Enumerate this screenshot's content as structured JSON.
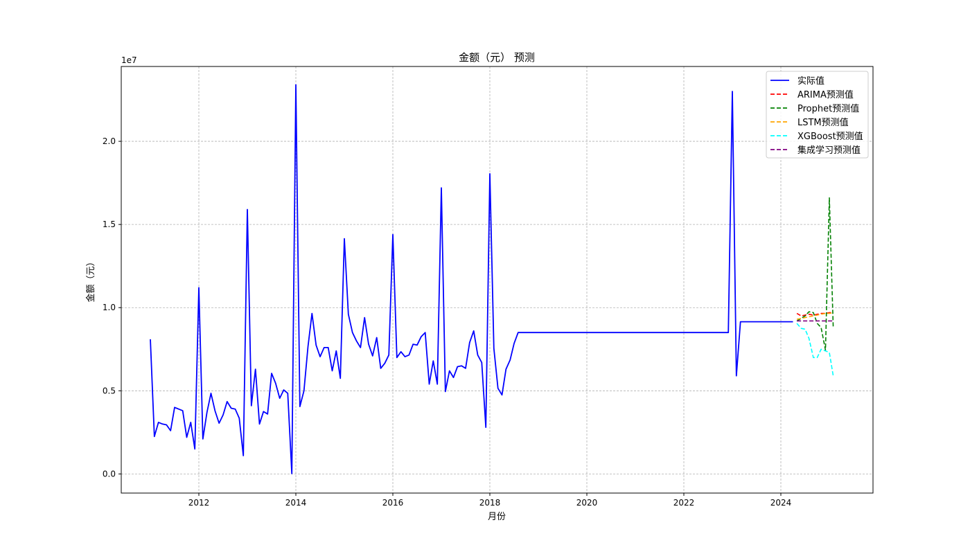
{
  "chart_data": {
    "type": "line",
    "title": "金额（元） 预测",
    "xlabel": "月份",
    "ylabel": "金额（元）",
    "y_offset_label": "1e7",
    "y_scale": 10000000,
    "xlim": [
      2010.4,
      2025.9
    ],
    "ylim": [
      -1150000,
      24500000
    ],
    "x_ticks": [
      2012,
      2014,
      2016,
      2018,
      2020,
      2022,
      2024
    ],
    "x_tick_labels": [
      "2012",
      "2014",
      "2016",
      "2018",
      "2020",
      "2022",
      "2024"
    ],
    "y_ticks": [
      0,
      5000000,
      10000000,
      15000000,
      20000000
    ],
    "y_tick_labels": [
      "0.0",
      "0.5",
      "1.0",
      "1.5",
      "2.0"
    ],
    "grid": true,
    "legend_position": "top-right",
    "series": [
      {
        "name": "实际值",
        "color": "#0000ff",
        "dash": "solid",
        "x": [
          2011.0,
          2011.083,
          2011.167,
          2011.25,
          2011.333,
          2011.417,
          2011.5,
          2011.583,
          2011.667,
          2011.75,
          2011.833,
          2011.917,
          2012.0,
          2012.083,
          2012.167,
          2012.25,
          2012.333,
          2012.417,
          2012.5,
          2012.583,
          2012.667,
          2012.75,
          2012.833,
          2012.917,
          2013.0,
          2013.083,
          2013.167,
          2013.25,
          2013.333,
          2013.417,
          2013.5,
          2013.583,
          2013.667,
          2013.75,
          2013.833,
          2013.917,
          2014.0,
          2014.083,
          2014.167,
          2014.25,
          2014.333,
          2014.417,
          2014.5,
          2014.583,
          2014.667,
          2014.75,
          2014.833,
          2014.917,
          2015.0,
          2015.083,
          2015.167,
          2015.25,
          2015.333,
          2015.417,
          2015.5,
          2015.583,
          2015.667,
          2015.75,
          2015.833,
          2015.917,
          2016.0,
          2016.083,
          2016.167,
          2016.25,
          2016.333,
          2016.417,
          2016.5,
          2016.583,
          2016.667,
          2016.75,
          2016.833,
          2016.917,
          2017.0,
          2017.083,
          2017.167,
          2017.25,
          2017.333,
          2017.417,
          2017.5,
          2017.583,
          2017.667,
          2017.75,
          2017.833,
          2017.917,
          2018.0,
          2018.083,
          2018.167,
          2018.25,
          2018.333,
          2018.417,
          2018.5,
          2018.583,
          2022.917,
          2023.0,
          2023.083,
          2023.167,
          2024.25
        ],
        "values": [
          8100000,
          2250000,
          3100000,
          3000000,
          2950000,
          2600000,
          4000000,
          3900000,
          3800000,
          2200000,
          3100000,
          1500000,
          11200000,
          2100000,
          3700000,
          4850000,
          3800000,
          3050000,
          3550000,
          4350000,
          3950000,
          3900000,
          3350000,
          1100000,
          15900000,
          4100000,
          6300000,
          3000000,
          3750000,
          3600000,
          6050000,
          5450000,
          4550000,
          5050000,
          4850000,
          20000,
          23400000,
          4050000,
          5000000,
          7650000,
          9650000,
          7750000,
          7050000,
          7600000,
          7600000,
          6200000,
          7400000,
          5750000,
          14150000,
          9600000,
          8500000,
          8000000,
          7600000,
          9400000,
          7800000,
          7100000,
          8200000,
          6350000,
          6650000,
          7150000,
          14400000,
          7000000,
          7350000,
          7050000,
          7150000,
          7800000,
          7750000,
          8250000,
          8500000,
          5400000,
          6800000,
          5400000,
          17200000,
          4950000,
          6200000,
          5800000,
          6450000,
          6500000,
          6350000,
          7900000,
          8600000,
          7150000,
          6700000,
          2800000,
          18050000,
          7550000,
          5150000,
          4750000,
          6300000,
          6850000,
          7850000,
          8500000,
          8500000,
          23000000,
          5900000,
          9150000,
          9150000
        ]
      },
      {
        "name": "ARIMA预测值",
        "color": "#ff0000",
        "dash": "dashed",
        "x": [
          2024.33,
          2024.42,
          2024.5,
          2024.58,
          2024.67,
          2024.75,
          2024.83,
          2024.92,
          2025.0,
          2025.08
        ],
        "values": [
          9650000,
          9500000,
          9550000,
          9600000,
          9550000,
          9600000,
          9650000,
          9650000,
          9700000,
          9700000
        ]
      },
      {
        "name": "Prophet预测值",
        "color": "#008000",
        "dash": "dashed",
        "x": [
          2024.33,
          2024.42,
          2024.5,
          2024.58,
          2024.67,
          2024.75,
          2024.83,
          2024.92,
          2025.0,
          2025.08
        ],
        "values": [
          9200000,
          9350000,
          9500000,
          9750000,
          9700000,
          9050000,
          8800000,
          7450000,
          16600000,
          8800000
        ]
      },
      {
        "name": "LSTM预测值",
        "color": "#ffa500",
        "dash": "dashed",
        "x": [
          2024.33,
          2024.42,
          2024.5,
          2024.58,
          2024.67,
          2024.75,
          2024.83,
          2024.92,
          2025.0,
          2025.08
        ],
        "values": [
          9300000,
          9350000,
          9400000,
          9450000,
          9500000,
          9550000,
          9600000,
          9650000,
          9650000,
          9700000
        ]
      },
      {
        "name": "XGBoost预测值",
        "color": "#00ffff",
        "dash": "dashed",
        "x": [
          2024.33,
          2024.42,
          2024.5,
          2024.58,
          2024.67,
          2024.75,
          2024.83,
          2024.92,
          2025.0,
          2025.08
        ],
        "values": [
          9050000,
          8750000,
          8700000,
          8150000,
          7000000,
          7000000,
          7500000,
          7400000,
          7300000,
          5900000
        ]
      },
      {
        "name": "集成学习预测值",
        "color": "#800080",
        "dash": "dashed",
        "x": [
          2024.33,
          2024.42,
          2024.5,
          2024.58,
          2024.67,
          2024.75,
          2024.83,
          2024.92,
          2025.0,
          2025.08
        ],
        "values": [
          9200000,
          9200000,
          9200000,
          9200000,
          9200000,
          9200000,
          9200000,
          9200000,
          9200000,
          9200000
        ]
      }
    ]
  }
}
